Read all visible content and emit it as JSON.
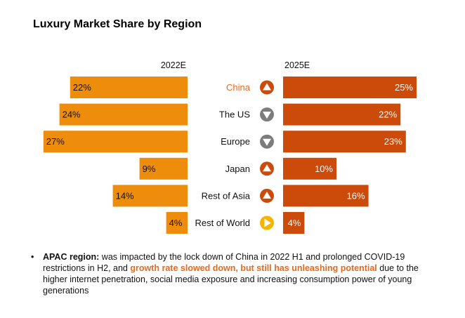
{
  "title": "Luxury Market Share by Region",
  "colors": {
    "left_bar": "#ee8c0b",
    "right_bar": "#cc4a0a",
    "highlight_label": "#e8691e",
    "up_arrow": "#cc4a0a",
    "down_arrow": "#7d7d7d",
    "flat_arrow": "#f5b400"
  },
  "chart_data": {
    "type": "bar",
    "title": "Luxury Market Share by Region",
    "categories": [
      "China",
      "The US",
      "Europe",
      "Japan",
      "Rest of Asia",
      "Rest of World"
    ],
    "series": [
      {
        "name": "2022E",
        "values": [
          22,
          24,
          27,
          9,
          14,
          4
        ],
        "labels": [
          "22%",
          "24%",
          "27%",
          "9%",
          "14%",
          "4%"
        ]
      },
      {
        "name": "2025E",
        "values": [
          25,
          22,
          23,
          10,
          16,
          4
        ],
        "labels": [
          "25%",
          "22%",
          "23%",
          "10%",
          "16%",
          "4%"
        ]
      }
    ],
    "trend_icons": [
      "up-arrow-icon",
      "down-arrow-icon",
      "down-arrow-icon",
      "up-arrow-icon",
      "up-arrow-icon",
      "right-arrow-icon"
    ],
    "highlighted_category": "China",
    "unit": "%"
  },
  "note": {
    "lead": "APAC region:",
    "text1": " was impacted by the lock down of China in 2022 H1 and prolonged COVID-19 restrictions in H2, and ",
    "highlight": "growth rate slowed down, but still has unleashing potential",
    "text2": " due to the higher internet penetration, social media exposure and increasing consumption power of young generations"
  }
}
